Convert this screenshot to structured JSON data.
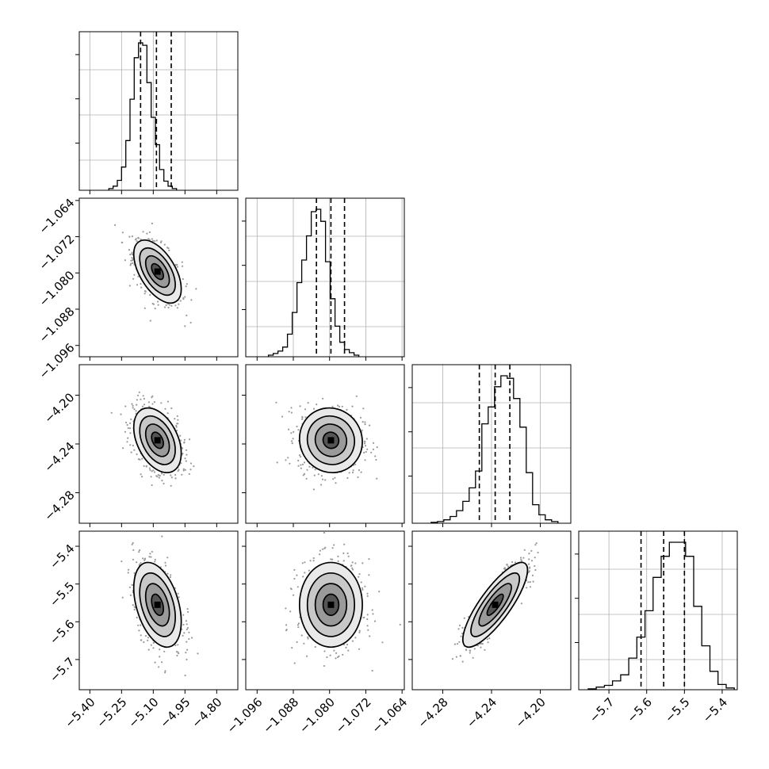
{
  "chart_data": {
    "type": "corner",
    "n_params": 4,
    "parameters": [
      {
        "mean": -5.08,
        "std": 0.055,
        "lim": [
          -5.45,
          -4.7
        ],
        "ticks": [
          -5.4,
          -5.25,
          -5.1,
          -4.95,
          -4.8
        ],
        "tick_labels": [
          "−5.40",
          "−5.25",
          "−5.10",
          "−4.95",
          "−4.80"
        ],
        "quantiles": [
          -5.16,
          -5.085,
          -5.015
        ]
      },
      {
        "mean": -1.0797,
        "std": 0.0034,
        "lim": [
          -1.0985,
          -1.0635
        ],
        "ticks": [
          -1.096,
          -1.088,
          -1.08,
          -1.072,
          -1.064
        ],
        "tick_labels": [
          "−1.096",
          "−1.088",
          "−1.080",
          "−1.072",
          "−1.064"
        ],
        "quantiles": [
          -1.0829,
          -1.0797,
          -1.0767
        ]
      },
      {
        "mean": -4.237,
        "std": 0.013,
        "lim": [
          -4.305,
          -4.175
        ],
        "ticks": [
          -4.28,
          -4.24,
          -4.2
        ],
        "tick_labels": [
          "−4.28",
          "−4.24",
          "−4.20"
        ],
        "quantiles": [
          -4.25,
          -4.237,
          -4.225
        ]
      },
      {
        "mean": -5.555,
        "std": 0.055,
        "lim": [
          -5.78,
          -5.36
        ],
        "ticks": [
          -5.7,
          -5.6,
          -5.5,
          -5.4
        ],
        "tick_labels": [
          "−5.7",
          "−5.6",
          "−5.5",
          "−5.4"
        ],
        "quantiles": [
          -5.615,
          -5.555,
          -5.5
        ]
      }
    ],
    "correlations": [
      {
        "i": 1,
        "j": 0,
        "rho": -0.55
      },
      {
        "i": 2,
        "j": 0,
        "rho": -0.4
      },
      {
        "i": 2,
        "j": 1,
        "rho": -0.05
      },
      {
        "i": 3,
        "j": 0,
        "rho": -0.4
      },
      {
        "i": 3,
        "j": 1,
        "rho": 0.0
      },
      {
        "i": 3,
        "j": 2,
        "rho": 0.82
      }
    ],
    "histograms": [
      {
        "param": 0,
        "bin_edges_start": -5.31,
        "bin_width": 0.02,
        "counts": [
          2,
          5,
          12,
          28,
          60,
          110,
          160,
          178,
          175,
          130,
          88,
          55,
          25,
          11,
          5,
          2
        ]
      },
      {
        "param": 1,
        "bin_edges_start": -1.0935,
        "bin_width": 0.00105,
        "counts": [
          2,
          4,
          7,
          12,
          28,
          55,
          92,
          120,
          150,
          180,
          183,
          168,
          118,
          72,
          38,
          18,
          9,
          5,
          2
        ]
      },
      {
        "param": 2,
        "bin_edges_start": -4.2895,
        "bin_width": 0.0052,
        "counts": [
          1,
          2,
          4,
          8,
          15,
          26,
          42,
          62,
          118,
          138,
          162,
          175,
          172,
          148,
          114,
          60,
          22,
          10,
          4,
          2
        ]
      },
      {
        "param": 3,
        "bin_edges_start": -5.755,
        "bin_width": 0.0215,
        "counts": [
          1,
          3,
          5,
          10,
          17,
          36,
          60,
          90,
          128,
          152,
          168,
          168,
          152,
          95,
          50,
          21,
          6,
          2
        ]
      }
    ],
    "contour_levels_sigma": [
      0.5,
      1.0,
      1.5,
      2.0
    ],
    "grid": true,
    "hist_yticks_hidden": true
  }
}
